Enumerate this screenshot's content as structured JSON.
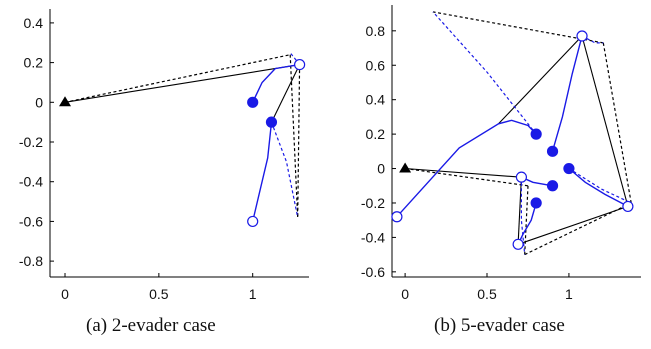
{
  "figure": {
    "caption_a": "(a)  2-evader case",
    "caption_b": "(b)  5-evader case"
  },
  "chart_data": [
    {
      "type": "line",
      "panel": "a",
      "xlim": [
        -0.08,
        1.3
      ],
      "ylim": [
        -0.88,
        0.47
      ],
      "x_ticks": [
        0,
        0.5,
        1
      ],
      "x_tick_labels": [
        "0",
        "0.5",
        "1"
      ],
      "y_ticks": [
        0.4,
        0.2,
        0,
        -0.2,
        -0.4,
        -0.6,
        -0.8
      ],
      "y_tick_labels": [
        "0.4",
        "0.2",
        "0",
        "-0.2",
        "-0.4",
        "-0.6",
        "-0.8"
      ],
      "grid": false,
      "pursuer": {
        "x": 0,
        "y": 0
      },
      "evaders": [
        {
          "x": 1.25,
          "y": 0.19,
          "filled": false
        },
        {
          "x": 1.0,
          "y": -0.6,
          "filled": false
        },
        {
          "x": 1.0,
          "y": 0.0,
          "filled": true
        },
        {
          "x": 1.1,
          "y": -0.1,
          "filled": true
        }
      ],
      "solid_black_lines": [
        [
          [
            0,
            0
          ],
          [
            1.25,
            0.19
          ]
        ],
        [
          [
            1.25,
            0.19
          ],
          [
            1.1,
            -0.1
          ]
        ]
      ],
      "dashed_black_lines": [
        [
          [
            0,
            0
          ],
          [
            1.2,
            0.24
          ]
        ],
        [
          [
            1.2,
            0.24
          ],
          [
            1.24,
            -0.58
          ]
        ],
        [
          [
            1.25,
            0.19
          ],
          [
            1.24,
            -0.58
          ]
        ]
      ],
      "solid_blue_lines": [
        [
          [
            1.0,
            0.0
          ],
          [
            1.05,
            0.1
          ],
          [
            1.12,
            0.17
          ],
          [
            1.25,
            0.19
          ]
        ],
        [
          [
            1.1,
            -0.1
          ],
          [
            1.08,
            -0.28
          ],
          [
            1.03,
            -0.48
          ],
          [
            1.0,
            -0.6
          ]
        ]
      ],
      "dashed_blue_lines": [
        [
          [
            1.25,
            0.19
          ],
          [
            1.2,
            0.25
          ]
        ],
        [
          [
            1.1,
            -0.1
          ],
          [
            1.18,
            -0.3
          ],
          [
            1.24,
            -0.58
          ]
        ]
      ]
    },
    {
      "type": "line",
      "panel": "b",
      "xlim": [
        -0.08,
        1.44
      ],
      "ylim": [
        -0.63,
        0.95
      ],
      "x_ticks": [
        0,
        0.5,
        1
      ],
      "x_tick_labels": [
        "0",
        "0.5",
        "1"
      ],
      "y_ticks": [
        0.8,
        0.6,
        0.4,
        0.2,
        0,
        -0.2,
        -0.4,
        -0.6
      ],
      "y_tick_labels": [
        "0.8",
        "0.6",
        "0.4",
        "0.2",
        "0",
        "-0.2",
        "-0.4",
        "-0.6"
      ],
      "grid": false,
      "pursuer": {
        "x": 0,
        "y": 0
      },
      "evaders": [
        {
          "x": 1.08,
          "y": 0.77,
          "filled": false
        },
        {
          "x": -0.05,
          "y": -0.28,
          "filled": false
        },
        {
          "x": 0.71,
          "y": -0.05,
          "filled": false
        },
        {
          "x": 0.69,
          "y": -0.44,
          "filled": false
        },
        {
          "x": 1.36,
          "y": -0.22,
          "filled": false
        },
        {
          "x": 0.8,
          "y": 0.2,
          "filled": true
        },
        {
          "x": 0.9,
          "y": 0.1,
          "filled": true
        },
        {
          "x": 0.9,
          "y": -0.1,
          "filled": true
        },
        {
          "x": 1.0,
          "y": 0.0,
          "filled": true
        },
        {
          "x": 0.8,
          "y": -0.2,
          "filled": true
        }
      ],
      "solid_black_lines": [
        [
          [
            0,
            0
          ],
          [
            0.71,
            -0.05
          ]
        ],
        [
          [
            0.71,
            -0.05
          ],
          [
            0.69,
            -0.44
          ]
        ],
        [
          [
            0.69,
            -0.44
          ],
          [
            1.36,
            -0.22
          ]
        ],
        [
          [
            1.36,
            -0.22
          ],
          [
            1.08,
            0.77
          ]
        ],
        [
          [
            1.08,
            0.77
          ],
          [
            0.57,
            0.26
          ]
        ]
      ],
      "dashed_black_lines": [
        [
          [
            0,
            0
          ],
          [
            0.75,
            -0.1
          ]
        ],
        [
          [
            0.75,
            -0.1
          ],
          [
            0.73,
            -0.5
          ]
        ],
        [
          [
            0.73,
            -0.5
          ],
          [
            1.38,
            -0.2
          ]
        ],
        [
          [
            1.38,
            -0.2
          ],
          [
            1.21,
            0.73
          ]
        ],
        [
          [
            1.21,
            0.73
          ],
          [
            0.17,
            0.91
          ]
        ]
      ],
      "solid_blue_lines": [
        [
          [
            -0.05,
            -0.28
          ],
          [
            0.33,
            0.12
          ],
          [
            0.57,
            0.26
          ],
          [
            0.65,
            0.28
          ],
          [
            0.75,
            0.25
          ],
          [
            0.8,
            0.2
          ]
        ],
        [
          [
            0.9,
            0.1
          ],
          [
            0.96,
            0.3
          ],
          [
            1.02,
            0.55
          ],
          [
            1.08,
            0.77
          ]
        ],
        [
          [
            1.0,
            0.0
          ],
          [
            1.1,
            -0.08
          ],
          [
            1.22,
            -0.15
          ],
          [
            1.36,
            -0.22
          ]
        ],
        [
          [
            0.8,
            -0.2
          ],
          [
            0.77,
            -0.3
          ],
          [
            0.72,
            -0.38
          ],
          [
            0.69,
            -0.44
          ]
        ],
        [
          [
            0.9,
            -0.1
          ],
          [
            0.78,
            -0.08
          ],
          [
            0.71,
            -0.05
          ]
        ]
      ],
      "dashed_blue_lines": [
        [
          [
            0.8,
            0.2
          ],
          [
            0.5,
            0.56
          ],
          [
            0.17,
            0.91
          ]
        ],
        [
          [
            1.08,
            0.77
          ],
          [
            1.16,
            0.73
          ],
          [
            1.21,
            0.73
          ]
        ],
        [
          [
            1.0,
            0.0
          ],
          [
            1.2,
            -0.12
          ],
          [
            1.38,
            -0.2
          ]
        ],
        [
          [
            0.71,
            -0.05
          ],
          [
            0.71,
            -0.3
          ],
          [
            0.73,
            -0.5
          ]
        ]
      ]
    }
  ]
}
